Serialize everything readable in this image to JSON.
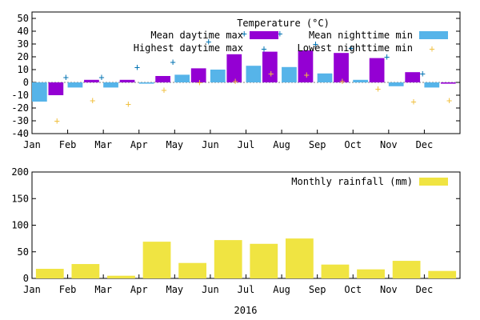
{
  "chart_data": [
    {
      "type": "bar",
      "title": "Temperature (°C)",
      "categories": [
        "Jan",
        "Feb",
        "Mar",
        "Apr",
        "May",
        "Jun",
        "Jul",
        "Aug",
        "Sep",
        "Oct",
        "Nov",
        "Dec"
      ],
      "ylim": [
        -40,
        55
      ],
      "yticks": [
        -40,
        -30,
        -20,
        -10,
        0,
        10,
        20,
        30,
        40,
        50
      ],
      "grid": false,
      "legend_position": "top-right",
      "series": [
        {
          "name": "Mean daytime max",
          "kind": "bar",
          "color": "#9400d3",
          "values": [
            -10,
            2,
            2,
            5,
            11,
            22,
            24,
            25,
            23,
            19,
            8,
            -1
          ]
        },
        {
          "name": "Mean nighttime min",
          "kind": "bar",
          "color": "#56b4e9",
          "values": [
            -15,
            -4,
            -4,
            -1,
            6,
            10,
            13,
            12,
            7,
            2,
            -3,
            -4
          ]
        },
        {
          "name": "Highest daytime max",
          "kind": "point",
          "color": "#0072b2",
          "values": [
            4,
            4,
            12,
            16,
            32,
            38,
            38,
            30,
            27,
            20,
            7,
            null
          ]
        },
        {
          "name": "Lowest nighttime min",
          "kind": "point",
          "color": "#f0c040",
          "values": [
            -30,
            -14,
            -17,
            -6,
            0,
            1,
            7,
            6,
            1,
            -5,
            -15,
            -14
          ]
        }
      ]
    },
    {
      "type": "bar",
      "title": "",
      "xlabel": "2016",
      "categories": [
        "Jan",
        "Feb",
        "Mar",
        "Apr",
        "May",
        "Jun",
        "Jul",
        "Aug",
        "Sep",
        "Oct",
        "Nov",
        "Dec"
      ],
      "ylim": [
        0,
        200
      ],
      "yticks": [
        0,
        50,
        100,
        150,
        200
      ],
      "grid": false,
      "legend_position": "top-right",
      "series": [
        {
          "name": "Monthly rainfall (mm)",
          "kind": "bar",
          "color": "#f0e442",
          "values": [
            18,
            27,
            5,
            69,
            29,
            72,
            65,
            75,
            26,
            17,
            33,
            14
          ]
        }
      ]
    }
  ]
}
